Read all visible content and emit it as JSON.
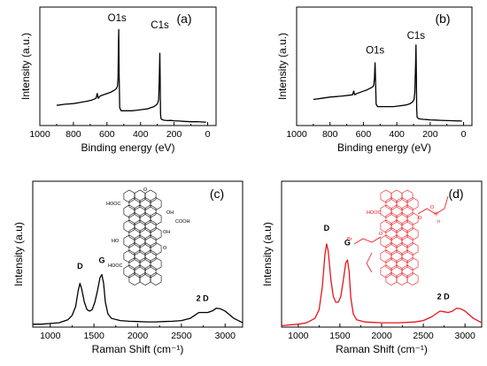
{
  "chart_data": [
    {
      "panel": "(a)",
      "type": "line",
      "xlabel": "Binding energy (eV)",
      "ylabel": "Intensity (a.u.)",
      "xlim": [
        1000,
        -50
      ],
      "x_reversed": true,
      "ylim": [
        0,
        100
      ],
      "x_ticks": [
        1000,
        800,
        600,
        400,
        200,
        0
      ],
      "y_ticks_labeled": false,
      "color": "#000000",
      "series": [
        {
          "x": [
            900,
            850,
            800,
            760,
            720,
            690,
            665,
            658,
            652,
            640,
            610,
            580,
            560,
            545,
            538,
            534,
            532,
            530,
            528,
            524,
            515,
            490,
            450,
            420,
            390,
            360,
            340,
            320,
            305,
            297,
            292,
            288,
            285,
            283,
            281,
            278,
            272,
            260,
            240,
            220,
            200,
            170,
            140,
            100,
            60,
            30,
            10
          ],
          "y": [
            17,
            18,
            18.5,
            19.5,
            20.5,
            21.5,
            23,
            27,
            23,
            25,
            26.5,
            28,
            29.5,
            31,
            33,
            40,
            65,
            81,
            45,
            15,
            12.5,
            12.5,
            12.5,
            13,
            13.5,
            14,
            15,
            16,
            17.5,
            19,
            22,
            40,
            61,
            40,
            10,
            6,
            5,
            4.5,
            4.2,
            4.3,
            4,
            3.8,
            3.5,
            3.2,
            3.3,
            3,
            2.8
          ]
        }
      ],
      "annotations": [
        {
          "text": "O1s",
          "x": 540,
          "y": 88
        },
        {
          "text": "C1s",
          "x": 285,
          "y": 82
        }
      ]
    },
    {
      "panel": "(b)",
      "type": "line",
      "xlabel": "Binding energy (eV)",
      "ylabel": "Intensity (a.u.)",
      "xlim": [
        1000,
        -50
      ],
      "x_reversed": true,
      "ylim": [
        0,
        100
      ],
      "x_ticks": [
        1000,
        800,
        600,
        400,
        200,
        0
      ],
      "y_ticks_labeled": false,
      "color": "#000000",
      "series": [
        {
          "x": [
            900,
            850,
            800,
            760,
            720,
            690,
            665,
            658,
            652,
            640,
            610,
            580,
            560,
            545,
            538,
            534,
            532,
            530,
            528,
            524,
            515,
            490,
            450,
            420,
            390,
            360,
            340,
            320,
            305,
            297,
            292,
            288,
            285,
            283,
            281,
            278,
            272,
            260,
            240,
            220,
            200,
            170,
            140,
            100,
            60,
            30,
            10
          ],
          "y": [
            22,
            23,
            24,
            24.5,
            25,
            25.5,
            26,
            29,
            26,
            27,
            28.5,
            30,
            31.5,
            32.5,
            34,
            40,
            48,
            53,
            42,
            18,
            16,
            16,
            16,
            16,
            16.5,
            17,
            17.5,
            18.5,
            20,
            22,
            28,
            50,
            68,
            45,
            14,
            7,
            6,
            5.5,
            5.2,
            5,
            4.8,
            4.6,
            4.4,
            4.2,
            4,
            3.9,
            3.8
          ]
        }
      ],
      "annotations": [
        {
          "text": "O1s",
          "x": 530,
          "y": 61
        },
        {
          "text": "C1s",
          "x": 285,
          "y": 73
        }
      ]
    },
    {
      "panel": "(c)",
      "type": "line",
      "xlabel": "Raman Shift (cm⁻¹)",
      "ylabel": "Intensity (a.u)",
      "xlim": [
        800,
        3200
      ],
      "ylim": [
        0,
        100
      ],
      "x_ticks": [
        1000,
        1500,
        2000,
        2500,
        3000
      ],
      "y_ticks_labeled": false,
      "color": "#000000",
      "series": [
        {
          "x": [
            800,
            900,
            1000,
            1100,
            1200,
            1250,
            1290,
            1320,
            1340,
            1360,
            1390,
            1420,
            1450,
            1480,
            1510,
            1540,
            1570,
            1590,
            1610,
            1630,
            1660,
            1700,
            1800,
            1900,
            2000,
            2100,
            2200,
            2300,
            2400,
            2500,
            2600,
            2650,
            2700,
            2750,
            2800,
            2850,
            2900,
            2950,
            3000,
            3100,
            3200
          ],
          "y": [
            2,
            2,
            2.5,
            3,
            5,
            8,
            14,
            25,
            30,
            26,
            17,
            12,
            11,
            12,
            17,
            25,
            34,
            36,
            30,
            17,
            9,
            6,
            4.5,
            4,
            3.8,
            3.6,
            3.6,
            3.8,
            4,
            4.5,
            6,
            8,
            10,
            10,
            10,
            11,
            13,
            12.5,
            11,
            6,
            3
          ]
        }
      ],
      "peak_labels": [
        {
          "text": "D",
          "x": 1340,
          "y": 40
        },
        {
          "text": "G",
          "x": 1590,
          "y": 44
        },
        {
          "text": "2 D",
          "x": 2740,
          "y": 18
        }
      ],
      "inset_labels": [
        "HOOC",
        "OH",
        "COOH",
        "OH",
        "HO",
        "HOOC",
        "O",
        "O"
      ]
    },
    {
      "panel": "(d)",
      "type": "line",
      "xlabel": "Raman Shift (cm⁻¹)",
      "ylabel": "Intensity (a.u)",
      "xlim": [
        800,
        3200
      ],
      "ylim": [
        0,
        100
      ],
      "x_ticks": [
        1000,
        1500,
        2000,
        2500,
        3000
      ],
      "y_ticks_labeled": false,
      "color": "#e8141b",
      "series": [
        {
          "x": [
            800,
            900,
            1000,
            1100,
            1200,
            1250,
            1290,
            1320,
            1340,
            1360,
            1390,
            1420,
            1450,
            1480,
            1510,
            1540,
            1570,
            1590,
            1610,
            1630,
            1660,
            1700,
            1800,
            1900,
            2000,
            2100,
            2200,
            2300,
            2400,
            2500,
            2600,
            2650,
            2700,
            2750,
            2800,
            2850,
            2900,
            2950,
            3000,
            3100,
            3200
          ],
          "y": [
            1,
            1.5,
            2,
            3,
            6,
            12,
            28,
            50,
            57,
            52,
            33,
            21,
            17,
            17,
            21,
            32,
            44,
            46,
            38,
            20,
            9,
            5,
            3.5,
            3.2,
            3,
            3,
            3,
            3.2,
            3.5,
            4.5,
            7,
            9,
            11,
            10.5,
            10,
            11,
            13,
            12.5,
            11,
            6,
            3
          ]
        }
      ],
      "peak_labels": [
        {
          "text": "D",
          "x": 1340,
          "y": 66
        },
        {
          "text": "G",
          "x": 1590,
          "y": 56
        },
        {
          "text": "2 D",
          "x": 2740,
          "y": 19
        }
      ],
      "inset_labels": [
        "HOOC",
        "Br",
        "O",
        "O",
        "O",
        "Ⓞ",
        "n"
      ]
    }
  ]
}
